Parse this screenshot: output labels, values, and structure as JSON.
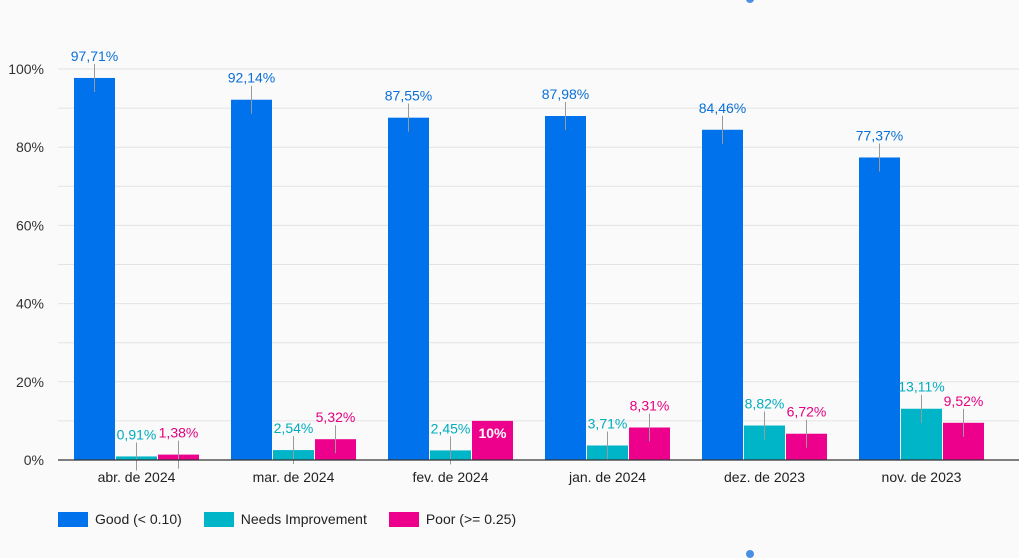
{
  "chart_data": {
    "type": "bar",
    "title": "",
    "xlabel": "",
    "ylabel": "",
    "ylim": [
      0,
      100
    ],
    "yticks": [
      {
        "value": 0,
        "label": "0%"
      },
      {
        "value": 20,
        "label": "20%"
      },
      {
        "value": 40,
        "label": "40%"
      },
      {
        "value": 60,
        "label": "60%"
      },
      {
        "value": 80,
        "label": "80%"
      },
      {
        "value": 100,
        "label": "100%"
      }
    ],
    "categories": [
      "abr. de 2024",
      "mar. de 2024",
      "fev. de 2024",
      "jan. de 2024",
      "dez. de 2023",
      "nov. de 2023"
    ],
    "series": [
      {
        "name": "Good (< 0.10)",
        "color": "#0072ec",
        "values": [
          97.71,
          92.14,
          87.55,
          87.98,
          84.46,
          77.37
        ],
        "labels": [
          "97,71%",
          "92,14%",
          "87,55%",
          "87,98%",
          "84,46%",
          "77,37%"
        ],
        "label_color": "#0a6fd6"
      },
      {
        "name": "Needs Improvement",
        "color": "#00b5c8",
        "values": [
          0.91,
          2.54,
          2.45,
          3.71,
          8.82,
          13.11
        ],
        "labels": [
          "0,91%",
          "2,54%",
          "2,45%",
          "3,71%",
          "8,82%",
          "13,11%"
        ],
        "label_color": "#00adc0"
      },
      {
        "name": "Poor (>= 0.25)",
        "color": "#ec008c",
        "values": [
          1.38,
          5.32,
          10,
          8.31,
          6.72,
          9.52
        ],
        "labels": [
          "1,38%",
          "5,32%",
          "10%",
          "8,31%",
          "6,72%",
          "9,52%"
        ],
        "label_color": "#e4007f"
      }
    ],
    "grid": true,
    "legend": "bottom-left"
  }
}
